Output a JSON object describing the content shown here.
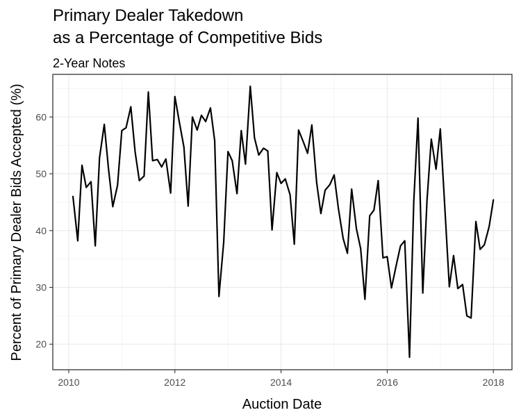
{
  "chart_data": {
    "type": "line",
    "title_lines": [
      "Primary Dealer Takedown",
      "as a Percentage of Competitive Bids"
    ],
    "subtitle": "2-Year Notes",
    "xlabel": "Auction Date",
    "ylabel": "Percent of Primary Dealer Bids Accepted (%)",
    "xlim": [
      2009.7,
      2018.35
    ],
    "ylim": [
      15.5,
      67.5
    ],
    "x_ticks": [
      2010,
      2012,
      2014,
      2016,
      2018
    ],
    "x_tick_labels": [
      "2010",
      "2012",
      "2014",
      "2016",
      "2018"
    ],
    "y_ticks": [
      20,
      30,
      40,
      50,
      60
    ],
    "y_tick_labels": [
      "20",
      "30",
      "40",
      "50",
      "60"
    ],
    "grid": true,
    "series": [
      {
        "color": "#000000",
        "x": [
          2010.08,
          2010.17,
          2010.25,
          2010.33,
          2010.42,
          2010.5,
          2010.58,
          2010.67,
          2010.75,
          2010.83,
          2010.92,
          2011.0,
          2011.08,
          2011.17,
          2011.25,
          2011.33,
          2011.42,
          2011.5,
          2011.58,
          2011.67,
          2011.75,
          2011.83,
          2011.92,
          2012.0,
          2012.08,
          2012.17,
          2012.25,
          2012.33,
          2012.42,
          2012.5,
          2012.58,
          2012.67,
          2012.75,
          2012.83,
          2012.92,
          2013.0,
          2013.08,
          2013.17,
          2013.25,
          2013.33,
          2013.42,
          2013.5,
          2013.58,
          2013.67,
          2013.75,
          2013.83,
          2013.92,
          2014.0,
          2014.08,
          2014.17,
          2014.25,
          2014.33,
          2014.42,
          2014.5,
          2014.58,
          2014.67,
          2014.75,
          2014.83,
          2014.92,
          2015.0,
          2015.08,
          2015.17,
          2015.25,
          2015.33,
          2015.42,
          2015.5,
          2015.58,
          2015.67,
          2015.75,
          2015.83,
          2015.92,
          2016.0,
          2016.08,
          2016.17,
          2016.25,
          2016.33,
          2016.42,
          2016.5,
          2016.58,
          2016.67,
          2016.75,
          2016.83,
          2016.92,
          2017.0,
          2017.08,
          2017.17,
          2017.25,
          2017.33,
          2017.42,
          2017.5,
          2017.58,
          2017.67,
          2017.75,
          2017.83,
          2017.92,
          2018.0
        ],
        "y": [
          46.0,
          38.2,
          51.5,
          47.6,
          48.6,
          37.3,
          52.8,
          58.7,
          50.8,
          44.2,
          48.0,
          57.6,
          58.1,
          61.8,
          53.9,
          48.8,
          49.6,
          64.4,
          52.3,
          52.5,
          51.2,
          52.6,
          46.6,
          63.6,
          59.3,
          54.7,
          44.3,
          60.0,
          57.7,
          60.3,
          59.2,
          61.6,
          55.8,
          28.4,
          38.0,
          53.9,
          52.3,
          46.5,
          57.6,
          51.7,
          65.4,
          56.3,
          53.3,
          54.5,
          54.0,
          40.1,
          50.2,
          48.3,
          49.1,
          46.3,
          37.6,
          57.7,
          55.6,
          53.6,
          58.6,
          48.5,
          43.0,
          47.1,
          48.1,
          49.8,
          43.9,
          38.6,
          36.0,
          47.3,
          40.3,
          36.8,
          27.9,
          42.6,
          43.6,
          48.8,
          35.2,
          35.4,
          29.9,
          33.9,
          37.3,
          38.2,
          17.7,
          45.1,
          59.8,
          29.0,
          45.4,
          56.1,
          50.8,
          57.9,
          44.9,
          30.1,
          35.6,
          29.8,
          30.5,
          25.0,
          24.6,
          41.6,
          36.7,
          37.5,
          40.7,
          45.4
        ]
      }
    ]
  }
}
